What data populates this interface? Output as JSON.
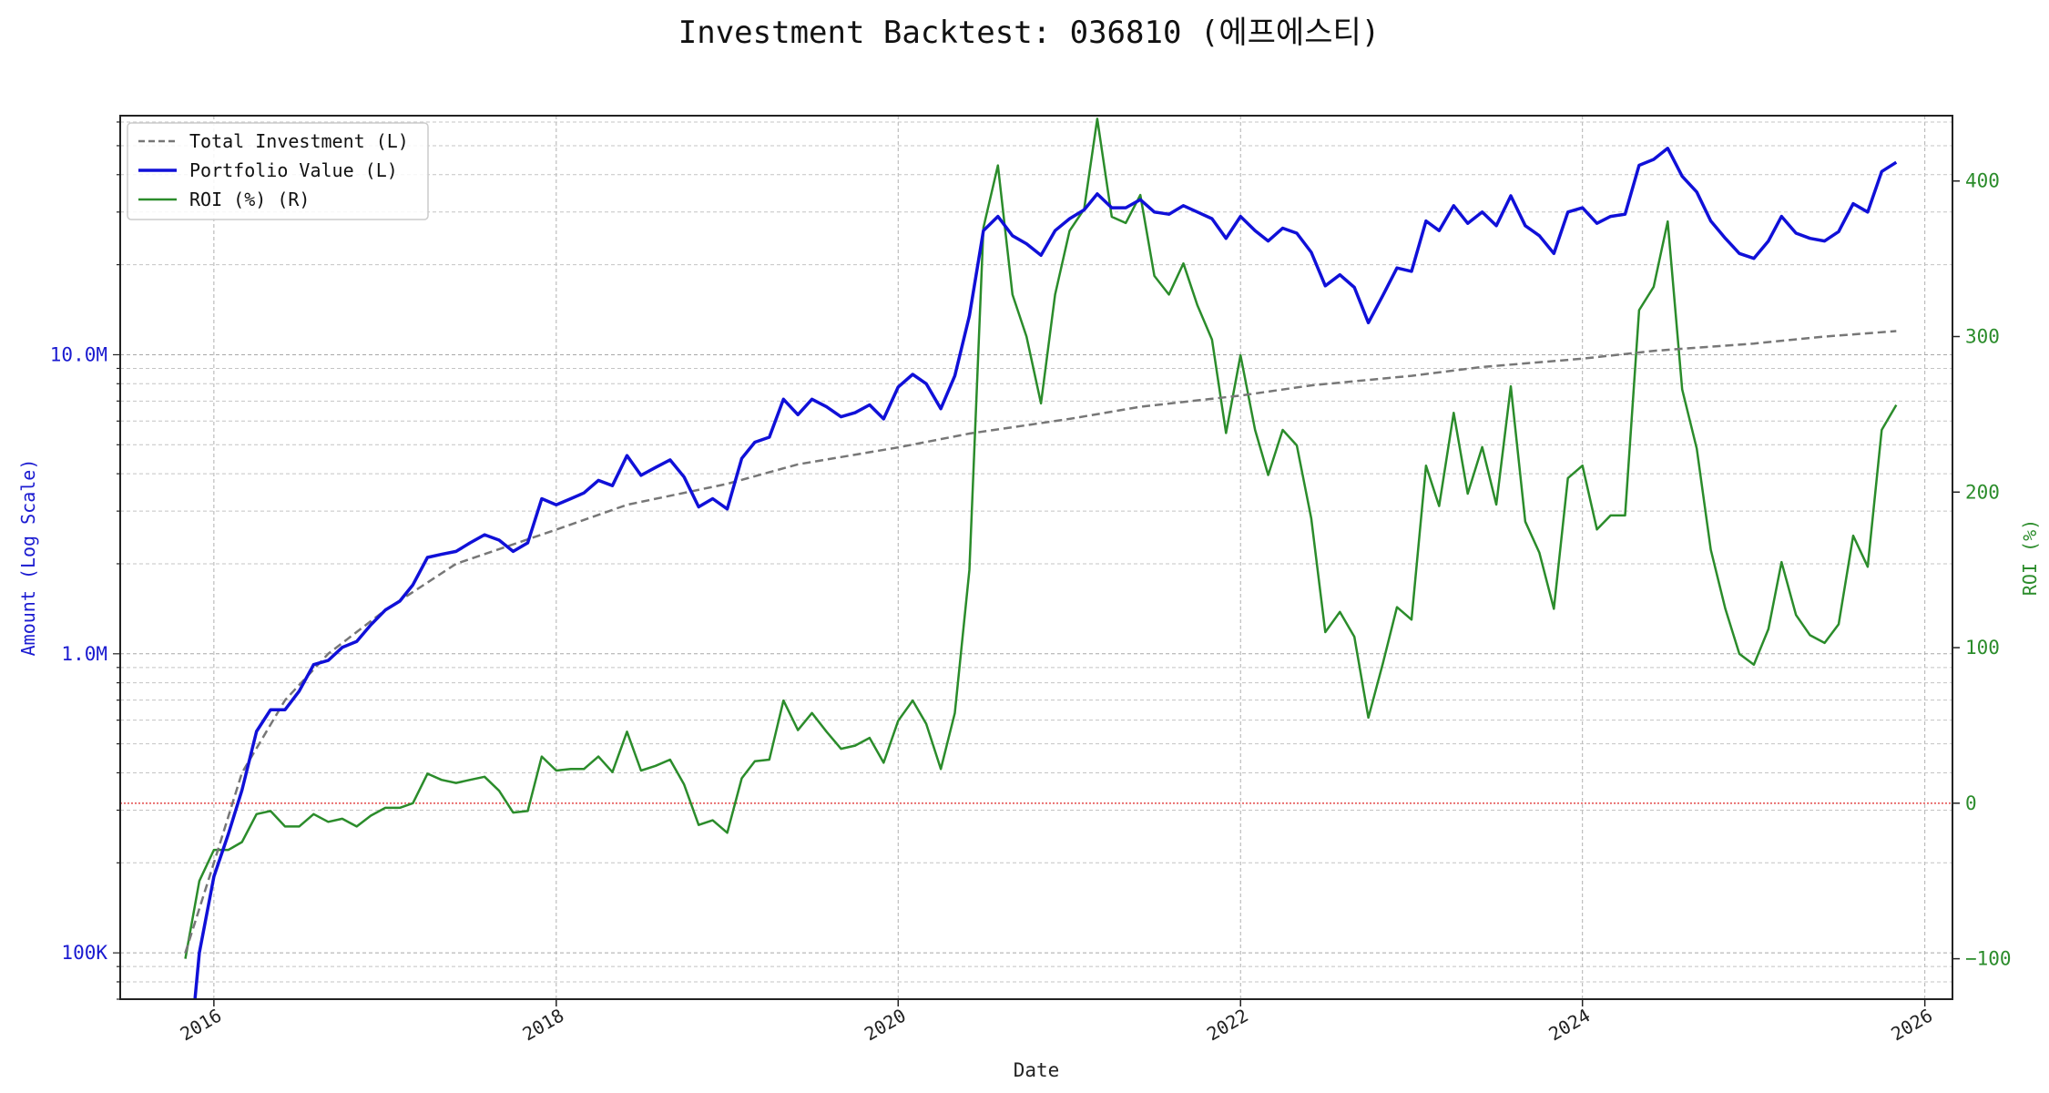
{
  "chart_data": {
    "type": "line",
    "title": "Investment Backtest: 036810 (에프에스티)",
    "xlabel": "Date",
    "ylabel_left": "Amount (Log Scale)",
    "ylabel_right": "ROI (%)",
    "left_scale": "log",
    "left_ylim": [
      70000,
      63000000
    ],
    "right_ylim": [
      -126,
      442
    ],
    "xlim": [
      "2015-06-15",
      "2026-03-01"
    ],
    "grid": true,
    "legend_position": "top-left",
    "x_ticks": [
      {
        "label": "2016",
        "date": "2016-01-01"
      },
      {
        "label": "2018",
        "date": "2018-01-01"
      },
      {
        "label": "2020",
        "date": "2020-01-01"
      },
      {
        "label": "2022",
        "date": "2022-01-01"
      },
      {
        "label": "2024",
        "date": "2024-01-01"
      },
      {
        "label": "2026",
        "date": "2026-01-01"
      }
    ],
    "left_ticks": [
      {
        "label": "100K",
        "value": 100000
      },
      {
        "label": "1.0M",
        "value": 1000000
      },
      {
        "label": "10.0M",
        "value": 10000000
      }
    ],
    "right_ticks": [
      {
        "label": "−100",
        "value": -100
      },
      {
        "label": "0",
        "value": 0
      },
      {
        "label": "100",
        "value": 100
      },
      {
        "label": "200",
        "value": 200
      },
      {
        "label": "300",
        "value": 300
      },
      {
        "label": "400",
        "value": 400
      }
    ],
    "reference_line": {
      "axis": "right",
      "value": 0,
      "color": "#e34a4a"
    },
    "series": [
      {
        "name": "Total Investment (L)",
        "axis": "left",
        "style": "dashed",
        "color": "#777777",
        "x": [
          "2015-11-01",
          "2016-01-01",
          "2016-03-01",
          "2016-06-01",
          "2016-09-01",
          "2017-01-01",
          "2017-06-01",
          "2018-01-01",
          "2018-06-01",
          "2019-01-01",
          "2019-06-01",
          "2020-01-01",
          "2020-06-01",
          "2021-01-01",
          "2021-06-01",
          "2022-01-01",
          "2022-06-01",
          "2023-01-01",
          "2023-06-01",
          "2024-01-01",
          "2024-06-01",
          "2025-01-01",
          "2025-06-01",
          "2025-11-01"
        ],
        "values": [
          100000,
          200000,
          400000,
          700000,
          1000000,
          1400000,
          2000000,
          2600000,
          3150000,
          3700000,
          4300000,
          4900000,
          5450000,
          6100000,
          6700000,
          7300000,
          7900000,
          8500000,
          9100000,
          9700000,
          10300000,
          10900000,
          11500000,
          12000000
        ]
      },
      {
        "name": "Portfolio Value (L)",
        "axis": "left",
        "style": "solid",
        "color": "#1010d8",
        "x": [
          "2015-11-20",
          "2015-12-01",
          "2016-01-01",
          "2016-02-01",
          "2016-03-01",
          "2016-04-01",
          "2016-05-01",
          "2016-06-01",
          "2016-07-01",
          "2016-08-01",
          "2016-09-01",
          "2016-10-01",
          "2016-11-01",
          "2016-12-01",
          "2017-01-01",
          "2017-02-01",
          "2017-03-01",
          "2017-04-01",
          "2017-05-01",
          "2017-06-01",
          "2017-07-01",
          "2017-08-01",
          "2017-09-01",
          "2017-10-01",
          "2017-11-01",
          "2017-12-01",
          "2018-01-01",
          "2018-02-01",
          "2018-03-01",
          "2018-04-01",
          "2018-05-01",
          "2018-06-01",
          "2018-07-01",
          "2018-08-01",
          "2018-09-01",
          "2018-10-01",
          "2018-11-01",
          "2018-12-01",
          "2019-01-01",
          "2019-02-01",
          "2019-03-01",
          "2019-04-01",
          "2019-05-01",
          "2019-06-01",
          "2019-07-01",
          "2019-08-01",
          "2019-09-01",
          "2019-10-01",
          "2019-11-01",
          "2019-12-01",
          "2020-01-01",
          "2020-02-01",
          "2020-03-01",
          "2020-04-01",
          "2020-05-01",
          "2020-06-01",
          "2020-07-01",
          "2020-08-01",
          "2020-09-01",
          "2020-10-01",
          "2020-11-01",
          "2020-12-01",
          "2021-01-01",
          "2021-02-01",
          "2021-03-01",
          "2021-04-01",
          "2021-05-01",
          "2021-06-01",
          "2021-07-01",
          "2021-08-01",
          "2021-09-01",
          "2021-10-01",
          "2021-11-01",
          "2021-12-01",
          "2022-01-01",
          "2022-02-01",
          "2022-03-01",
          "2022-04-01",
          "2022-05-01",
          "2022-06-01",
          "2022-07-01",
          "2022-08-01",
          "2022-09-01",
          "2022-10-01",
          "2022-11-01",
          "2022-12-01",
          "2023-01-01",
          "2023-02-01",
          "2023-03-01",
          "2023-04-01",
          "2023-05-01",
          "2023-06-01",
          "2023-07-01",
          "2023-08-01",
          "2023-09-01",
          "2023-10-01",
          "2023-11-01",
          "2023-12-01",
          "2024-01-01",
          "2024-02-01",
          "2024-03-01",
          "2024-04-01",
          "2024-05-01",
          "2024-06-01",
          "2024-07-01",
          "2024-08-01",
          "2024-09-01",
          "2024-10-01",
          "2024-11-01",
          "2024-12-01",
          "2025-01-01",
          "2025-02-01",
          "2025-03-01",
          "2025-04-01",
          "2025-05-01",
          "2025-06-01",
          "2025-07-01",
          "2025-08-01",
          "2025-09-01",
          "2025-10-01",
          "2025-11-01"
        ],
        "values": [
          66000,
          100000,
          180000,
          250000,
          350000,
          550000,
          650000,
          650000,
          750000,
          920000,
          950000,
          1050000,
          1100000,
          1250000,
          1400000,
          1500000,
          1700000,
          2100000,
          2150000,
          2200000,
          2350000,
          2500000,
          2400000,
          2200000,
          2350000,
          3300000,
          3150000,
          3300000,
          3450000,
          3800000,
          3650000,
          4600000,
          3950000,
          4200000,
          4450000,
          3900000,
          3100000,
          3300000,
          3050000,
          4500000,
          5100000,
          5300000,
          7100000,
          6300000,
          7100000,
          6700000,
          6200000,
          6400000,
          6800000,
          6100000,
          7800000,
          8600000,
          8000000,
          6600000,
          8500000,
          13500000,
          26000000,
          29000000,
          25000000,
          23500000,
          21500000,
          26000000,
          28500000,
          30500000,
          34500000,
          31000000,
          31000000,
          33000000,
          30000000,
          29500000,
          31500000,
          30000000,
          28500000,
          24500000,
          29000000,
          26000000,
          24000000,
          26500000,
          25500000,
          22000000,
          17000000,
          18500000,
          16800000,
          12800000,
          15800000,
          19500000,
          19000000,
          28000000,
          26000000,
          31500000,
          27500000,
          30000000,
          27000000,
          34000000,
          27000000,
          25000000,
          21800000,
          30000000,
          31000000,
          27500000,
          29000000,
          29500000,
          43000000,
          45000000,
          49000000,
          39500000,
          35000000,
          28000000,
          24500000,
          21800000,
          21000000,
          24000000,
          29000000,
          25500000,
          24500000,
          24000000,
          25800000,
          32000000,
          30000000,
          41000000,
          44000000
        ]
      },
      {
        "name": "ROI (%) (R)",
        "axis": "right",
        "style": "solid",
        "color": "#2b8c2b",
        "x": [
          "2015-11-01",
          "2015-12-01",
          "2016-01-01",
          "2016-02-01",
          "2016-03-01",
          "2016-04-01",
          "2016-05-01",
          "2016-06-01",
          "2016-07-01",
          "2016-08-01",
          "2016-09-01",
          "2016-10-01",
          "2016-11-01",
          "2016-12-01",
          "2017-01-01",
          "2017-02-01",
          "2017-03-01",
          "2017-04-01",
          "2017-05-01",
          "2017-06-01",
          "2017-07-01",
          "2017-08-01",
          "2017-09-01",
          "2017-10-01",
          "2017-11-01",
          "2017-12-01",
          "2018-01-01",
          "2018-02-01",
          "2018-03-01",
          "2018-04-01",
          "2018-05-01",
          "2018-06-01",
          "2018-07-01",
          "2018-08-01",
          "2018-09-01",
          "2018-10-01",
          "2018-11-01",
          "2018-12-01",
          "2019-01-01",
          "2019-02-01",
          "2019-03-01",
          "2019-04-01",
          "2019-05-01",
          "2019-06-01",
          "2019-07-01",
          "2019-08-01",
          "2019-09-01",
          "2019-10-01",
          "2019-11-01",
          "2019-12-01",
          "2020-01-01",
          "2020-02-01",
          "2020-03-01",
          "2020-04-01",
          "2020-05-01",
          "2020-06-01",
          "2020-07-01",
          "2020-08-01",
          "2020-09-01",
          "2020-10-01",
          "2020-11-01",
          "2020-12-01",
          "2021-01-01",
          "2021-02-01",
          "2021-03-01",
          "2021-04-01",
          "2021-05-01",
          "2021-06-01",
          "2021-07-01",
          "2021-08-01",
          "2021-09-01",
          "2021-10-01",
          "2021-11-01",
          "2021-12-01",
          "2022-01-01",
          "2022-02-01",
          "2022-03-01",
          "2022-04-01",
          "2022-05-01",
          "2022-06-01",
          "2022-07-01",
          "2022-08-01",
          "2022-09-01",
          "2022-10-01",
          "2022-11-01",
          "2022-12-01",
          "2023-01-01",
          "2023-02-01",
          "2023-03-01",
          "2023-04-01",
          "2023-05-01",
          "2023-06-01",
          "2023-07-01",
          "2023-08-01",
          "2023-09-01",
          "2023-10-01",
          "2023-11-01",
          "2023-12-01",
          "2024-01-01",
          "2024-02-01",
          "2024-03-01",
          "2024-04-01",
          "2024-05-01",
          "2024-06-01",
          "2024-07-01",
          "2024-08-01",
          "2024-09-01",
          "2024-10-01",
          "2024-11-01",
          "2024-12-01",
          "2025-01-01",
          "2025-02-01",
          "2025-03-01",
          "2025-04-01",
          "2025-05-01",
          "2025-06-01",
          "2025-07-01",
          "2025-08-01",
          "2025-09-01",
          "2025-10-01",
          "2025-11-01"
        ],
        "values": [
          -100,
          -50,
          -30,
          -30,
          -25,
          -7,
          -5,
          -15,
          -15,
          -7,
          -12,
          -10,
          -15,
          -8,
          -3,
          -3,
          0,
          19,
          15,
          13,
          15,
          17,
          8,
          -6,
          -5,
          30,
          21,
          22,
          22,
          30,
          20,
          46,
          21,
          24,
          28,
          12,
          -14,
          -11,
          -19,
          16,
          27,
          28,
          66,
          47,
          58,
          46,
          35,
          37,
          42,
          26,
          53,
          66,
          51,
          22,
          58,
          150,
          370,
          410,
          327,
          300,
          257,
          327,
          368,
          382,
          440,
          377,
          373,
          391,
          339,
          327,
          347,
          320,
          298,
          238,
          288,
          240,
          211,
          240,
          230,
          183,
          110,
          123,
          107,
          55,
          90,
          126,
          118,
          217,
          191,
          251,
          199,
          229,
          192,
          268,
          181,
          161,
          125,
          209,
          217,
          176,
          185,
          185,
          317,
          332,
          374,
          266,
          228,
          163,
          125,
          96,
          89,
          112,
          155,
          121,
          108,
          103,
          115,
          172,
          152,
          240,
          256
        ]
      }
    ]
  }
}
